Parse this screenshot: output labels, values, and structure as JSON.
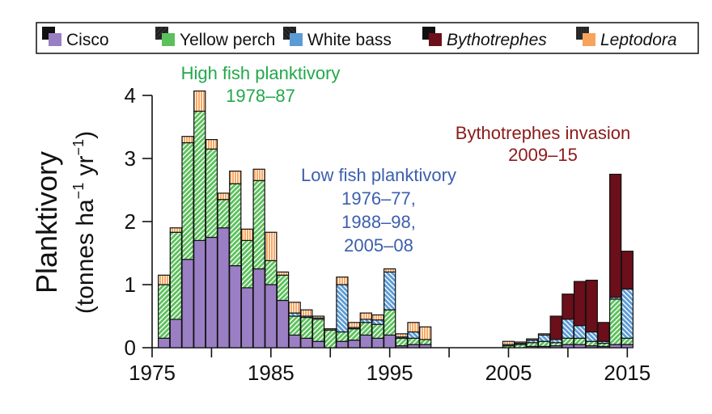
{
  "chart_data": {
    "type": "bar",
    "stacked": true,
    "ylabel_line1": "Planktivory",
    "ylabel_line2_main": "(tonnes ha",
    "ylabel_sup1": "−1",
    "ylabel_mid": " yr",
    "ylabel_sup2": "−1",
    "ylabel_end": ")",
    "xlim": [
      1975,
      2016
    ],
    "ylim": [
      0,
      4
    ],
    "x_ticks": [
      1975,
      1980,
      1985,
      1990,
      1995,
      2000,
      2005,
      2010,
      2015
    ],
    "x_tick_labels": [
      "1975",
      "1985",
      "1995",
      "2005",
      "2015"
    ],
    "x_tick_label_values": [
      1975,
      1985,
      1995,
      2005,
      2015
    ],
    "y_ticks": [
      0,
      1,
      2,
      3,
      4
    ],
    "y_tick_labels": [
      "0",
      "1",
      "2",
      "3",
      "4"
    ],
    "series": [
      {
        "name": "Cisco",
        "key": "cisco",
        "color": "#9b7fc4",
        "pattern_color": "#000000"
      },
      {
        "name": "Yellow perch",
        "key": "perch",
        "color": "#5cc15c",
        "pattern_color": "#000000"
      },
      {
        "name": "White bass",
        "key": "bass",
        "color": "#5b9bd5",
        "pattern_color": "#000000"
      },
      {
        "name": "Bythotrephes",
        "key": "bytho",
        "color": "#6b0f1a",
        "pattern_color": "#000000",
        "italic": true
      },
      {
        "name": "Leptodora",
        "key": "lepto",
        "color": "#f7a35c",
        "pattern_color": "#000000",
        "italic": true
      }
    ],
    "years": [
      {
        "year": 1976,
        "cisco": 0.15,
        "perch": 0.85,
        "bass": 0.0,
        "bytho": 0.0,
        "lepto": 0.15
      },
      {
        "year": 1977,
        "cisco": 0.45,
        "perch": 1.38,
        "bass": 0.0,
        "bytho": 0.0,
        "lepto": 0.07
      },
      {
        "year": 1978,
        "cisco": 1.4,
        "perch": 1.85,
        "bass": 0.0,
        "bytho": 0.0,
        "lepto": 0.1
      },
      {
        "year": 1979,
        "cisco": 1.7,
        "perch": 2.05,
        "bass": 0.0,
        "bytho": 0.0,
        "lepto": 0.32
      },
      {
        "year": 1980,
        "cisco": 1.75,
        "perch": 1.4,
        "bass": 0.0,
        "bytho": 0.0,
        "lepto": 0.15
      },
      {
        "year": 1981,
        "cisco": 1.9,
        "perch": 0.45,
        "bass": 0.0,
        "bytho": 0.0,
        "lepto": 0.1
      },
      {
        "year": 1982,
        "cisco": 1.3,
        "perch": 1.3,
        "bass": 0.0,
        "bytho": 0.0,
        "lepto": 0.2
      },
      {
        "year": 1983,
        "cisco": 0.95,
        "perch": 0.75,
        "bass": 0.0,
        "bytho": 0.0,
        "lepto": 0.18
      },
      {
        "year": 1984,
        "cisco": 1.25,
        "perch": 1.4,
        "bass": 0.0,
        "bytho": 0.0,
        "lepto": 0.18
      },
      {
        "year": 1985,
        "cisco": 1.0,
        "perch": 0.38,
        "bass": 0.0,
        "bytho": 0.0,
        "lepto": 0.45
      },
      {
        "year": 1986,
        "cisco": 0.75,
        "perch": 0.4,
        "bass": 0.0,
        "bytho": 0.0,
        "lepto": 0.05
      },
      {
        "year": 1987,
        "cisco": 0.2,
        "perch": 0.3,
        "bass": 0.05,
        "bytho": 0.0,
        "lepto": 0.17
      },
      {
        "year": 1988,
        "cisco": 0.15,
        "perch": 0.33,
        "bass": 0.02,
        "bytho": 0.0,
        "lepto": 0.1
      },
      {
        "year": 1989,
        "cisco": 0.1,
        "perch": 0.35,
        "bass": 0.02,
        "bytho": 0.0,
        "lepto": 0.03
      },
      {
        "year": 1990,
        "cisco": 0.0,
        "perch": 0.28,
        "bass": 0.0,
        "bytho": 0.0,
        "lepto": 0.02
      },
      {
        "year": 1991,
        "cisco": 0.1,
        "perch": 0.15,
        "bass": 0.75,
        "bytho": 0.0,
        "lepto": 0.12
      },
      {
        "year": 1992,
        "cisco": 0.12,
        "perch": 0.18,
        "bass": 0.02,
        "bytho": 0.0,
        "lepto": 0.08
      },
      {
        "year": 1993,
        "cisco": 0.2,
        "perch": 0.2,
        "bass": 0.05,
        "bytho": 0.0,
        "lepto": 0.1
      },
      {
        "year": 1994,
        "cisco": 0.15,
        "perch": 0.22,
        "bass": 0.07,
        "bytho": 0.0,
        "lepto": 0.08
      },
      {
        "year": 1995,
        "cisco": 0.2,
        "perch": 0.4,
        "bass": 0.6,
        "bytho": 0.0,
        "lepto": 0.05
      },
      {
        "year": 1996,
        "cisco": 0.03,
        "perch": 0.12,
        "bass": 0.02,
        "bytho": 0.0,
        "lepto": 0.05
      },
      {
        "year": 1997,
        "cisco": 0.05,
        "perch": 0.1,
        "bass": 0.1,
        "bytho": 0.0,
        "lepto": 0.15
      },
      {
        "year": 1998,
        "cisco": 0.05,
        "perch": 0.08,
        "bass": 0.0,
        "bytho": 0.0,
        "lepto": 0.2
      },
      {
        "year": 1999,
        "cisco": 0.0,
        "perch": 0.0,
        "bass": 0.0,
        "bytho": 0.0,
        "lepto": 0.0
      },
      {
        "year": 2000,
        "cisco": 0.0,
        "perch": 0.0,
        "bass": 0.0,
        "bytho": 0.0,
        "lepto": 0.0
      },
      {
        "year": 2001,
        "cisco": 0.0,
        "perch": 0.0,
        "bass": 0.0,
        "bytho": 0.0,
        "lepto": 0.0
      },
      {
        "year": 2002,
        "cisco": 0.0,
        "perch": 0.0,
        "bass": 0.0,
        "bytho": 0.0,
        "lepto": 0.0
      },
      {
        "year": 2003,
        "cisco": 0.0,
        "perch": 0.0,
        "bass": 0.0,
        "bytho": 0.0,
        "lepto": 0.0
      },
      {
        "year": 2004,
        "cisco": 0.0,
        "perch": 0.0,
        "bass": 0.0,
        "bytho": 0.0,
        "lepto": 0.0
      },
      {
        "year": 2005,
        "cisco": 0.0,
        "perch": 0.03,
        "bass": 0.02,
        "bytho": 0.0,
        "lepto": 0.05
      },
      {
        "year": 2006,
        "cisco": 0.0,
        "perch": 0.05,
        "bass": 0.02,
        "bytho": 0.0,
        "lepto": 0.02
      },
      {
        "year": 2007,
        "cisco": 0.02,
        "perch": 0.06,
        "bass": 0.04,
        "bytho": 0.0,
        "lepto": 0.02
      },
      {
        "year": 2008,
        "cisco": 0.02,
        "perch": 0.08,
        "bass": 0.1,
        "bytho": 0.0,
        "lepto": 0.02
      },
      {
        "year": 2009,
        "cisco": 0.03,
        "perch": 0.05,
        "bass": 0.05,
        "bytho": 0.37,
        "lepto": 0.0
      },
      {
        "year": 2010,
        "cisco": 0.05,
        "perch": 0.1,
        "bass": 0.3,
        "bytho": 0.4,
        "lepto": 0.0
      },
      {
        "year": 2011,
        "cisco": 0.05,
        "perch": 0.1,
        "bass": 0.2,
        "bytho": 0.7,
        "lepto": 0.0
      },
      {
        "year": 2012,
        "cisco": 0.03,
        "perch": 0.07,
        "bass": 0.15,
        "bytho": 0.82,
        "lepto": 0.0
      },
      {
        "year": 2013,
        "cisco": 0.02,
        "perch": 0.05,
        "bass": 0.03,
        "bytho": 0.3,
        "lepto": 0.0
      },
      {
        "year": 2014,
        "cisco": 0.05,
        "perch": 0.72,
        "bass": 0.03,
        "bytho": 1.95,
        "lepto": 0.0
      },
      {
        "year": 2015,
        "cisco": 0.05,
        "perch": 0.1,
        "bass": 0.78,
        "bytho": 0.6,
        "lepto": 0.0
      }
    ],
    "annotations": [
      {
        "key": "high",
        "lines": [
          "High fish planktivory",
          "1978–87"
        ],
        "color": "#22a84a"
      },
      {
        "key": "low",
        "lines": [
          "Low fish planktivory",
          "1976–77,",
          "1988–98,",
          "2005–08"
        ],
        "color": "#3b5fae"
      },
      {
        "key": "invasion",
        "lines": [
          "Bythotrephes invasion",
          "2009–15"
        ],
        "color": "#8b1a1a"
      }
    ],
    "legend_position": "top"
  }
}
